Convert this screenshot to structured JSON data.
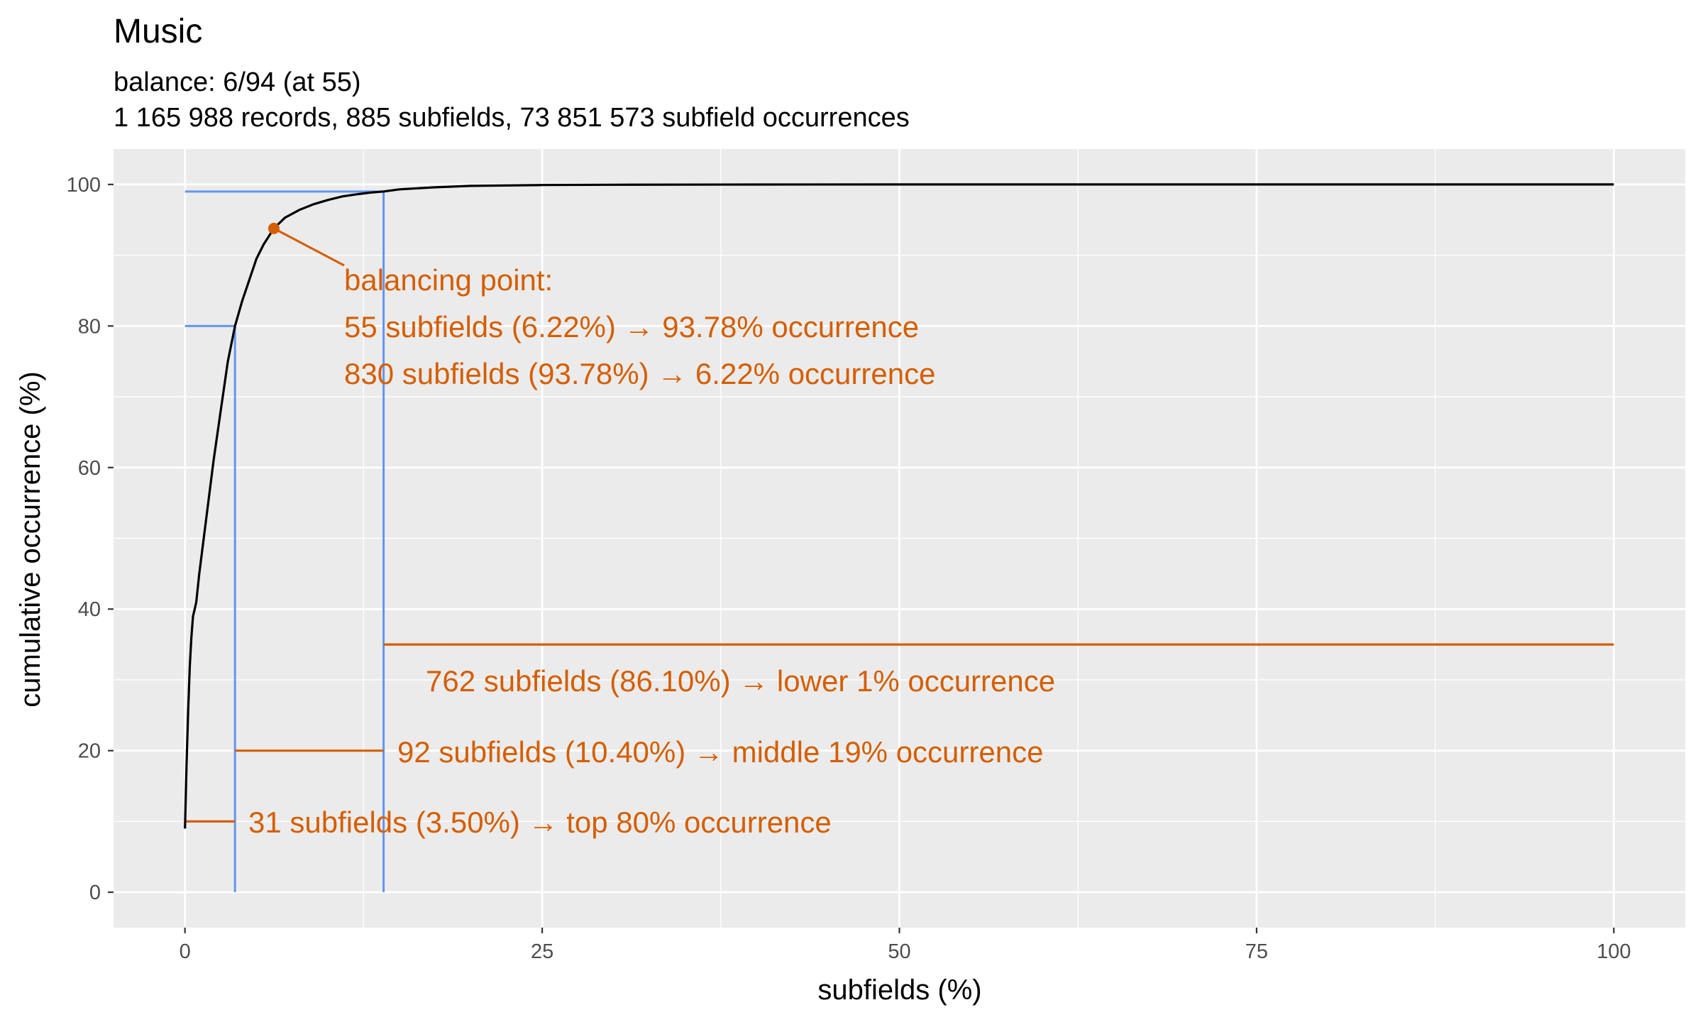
{
  "chart_data": {
    "type": "line",
    "title": "Music",
    "subtitle_lines": [
      "balance: 6/94 (at 55)",
      "1 165 988 records, 885 subfields, 73 851 573 subfield occurrences"
    ],
    "xlabel": "subfields (%)",
    "ylabel": "cumulative occurrence (%)",
    "xlim": [
      -5,
      105
    ],
    "ylim": [
      -5,
      105
    ],
    "x_ticks": [
      0,
      25,
      50,
      75,
      100
    ],
    "y_ticks": [
      0,
      20,
      40,
      60,
      80,
      100
    ],
    "grid": true,
    "legend": "none",
    "colors": {
      "panel": "#ebebeb",
      "grid": "#ffffff",
      "curve": "#000000",
      "guide": "#6495ed",
      "annotation": "#d55e00"
    },
    "series": [
      {
        "x": [
          0,
          0.11,
          0.23,
          0.34,
          0.45,
          0.56,
          0.68,
          0.79,
          1.0,
          1.5,
          2.0,
          2.5,
          3.0,
          3.5,
          4.0,
          4.5,
          5.0,
          5.5,
          6.22,
          7.0,
          8.0,
          9.0,
          10.0,
          11.0,
          12.0,
          13.0,
          13.9,
          15.0,
          17.5,
          20.0,
          25.0,
          30.0,
          40.0,
          50.0,
          60.0,
          70.0,
          80.0,
          90.0,
          100.0
        ],
        "y": [
          9,
          18,
          26,
          32,
          36,
          39,
          40,
          41,
          45,
          53,
          61,
          68,
          75,
          80,
          83.5,
          86.5,
          89.5,
          91.5,
          93.78,
          95.3,
          96.4,
          97.2,
          97.8,
          98.3,
          98.6,
          98.85,
          99.0,
          99.3,
          99.6,
          99.8,
          99.92,
          99.96,
          99.99,
          100,
          100,
          100,
          100,
          100,
          100
        ]
      }
    ],
    "balancing_point": {
      "x": 6.22,
      "y": 93.78
    },
    "guides": [
      {
        "x": 3.5,
        "y": 80
      },
      {
        "x": 13.9,
        "y": 99
      }
    ],
    "segments": [
      {
        "x_start": 0,
        "x_end": 3.5,
        "y": 10
      },
      {
        "x_start": 3.5,
        "x_end": 13.9,
        "y": 20
      },
      {
        "x_start": 13.9,
        "x_end": 100,
        "y": 35
      }
    ],
    "annotations": {
      "balancing": [
        "balancing point:",
        "55 subfields (6.22%) → 93.78% occurrence",
        "830 subfields (93.78%) → 6.22% occurrence"
      ],
      "lower": "762 subfields (86.10%) → lower 1% occurrence",
      "middle": "92 subfields (10.40%) → middle 19% occurrence",
      "top": "31 subfields (3.50%) → top 80% occurrence"
    }
  }
}
